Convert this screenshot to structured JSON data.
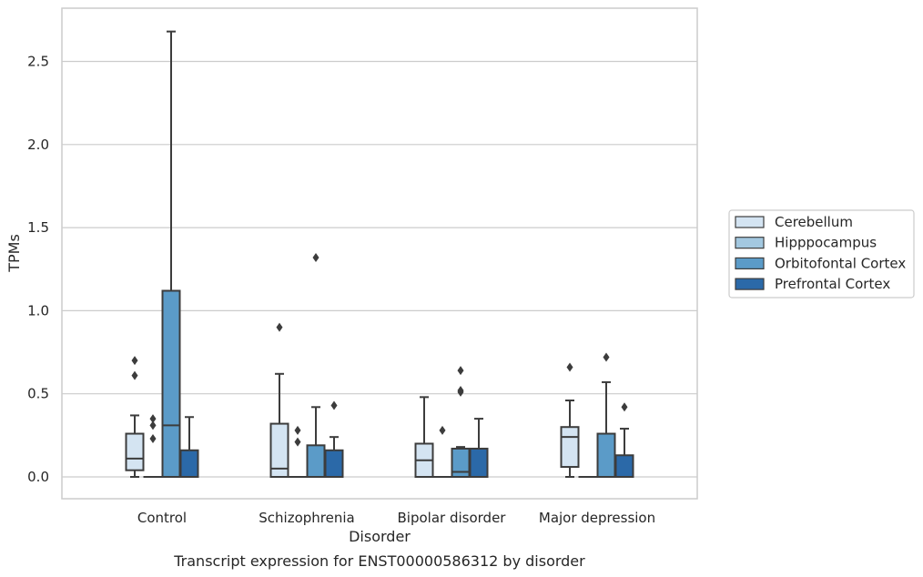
{
  "chart_data": {
    "type": "box",
    "caption": "Transcript expression for ENST00000586312 by disorder",
    "xlabel": "Disorder",
    "ylabel": "TPMs",
    "ylim": [
      -0.13,
      2.83
    ],
    "yticks": [
      "0.0",
      "0.5",
      "1.0",
      "1.5",
      "2.0",
      "2.5"
    ],
    "ytick_values": [
      0.0,
      0.5,
      1.0,
      1.5,
      2.0,
      2.5
    ],
    "grid": true,
    "legend_position": "right",
    "categories": [
      "Control",
      "Schizophrenia",
      "Bipolar disorder",
      "Major depression"
    ],
    "series": [
      {
        "name": "Cerebellum",
        "color": "#d4e4f2",
        "boxes": [
          {
            "whislo": 0.0,
            "q1": 0.04,
            "med": 0.11,
            "q3": 0.26,
            "whishi": 0.37,
            "fliers": [
              0.61,
              0.7
            ]
          },
          {
            "whislo": 0.0,
            "q1": 0.0,
            "med": 0.05,
            "q3": 0.32,
            "whishi": 0.62,
            "fliers": [
              0.9
            ]
          },
          {
            "whislo": 0.0,
            "q1": 0.0,
            "med": 0.1,
            "q3": 0.2,
            "whishi": 0.48,
            "fliers": []
          },
          {
            "whislo": 0.0,
            "q1": 0.06,
            "med": 0.24,
            "q3": 0.3,
            "whishi": 0.46,
            "fliers": [
              0.66
            ]
          }
        ]
      },
      {
        "name": "Hipppocampus",
        "color": "#a3c8e0",
        "boxes": [
          {
            "whislo": 0.0,
            "q1": 0.0,
            "med": 0.0,
            "q3": 0.0,
            "whishi": 0.0,
            "fliers": [
              0.23,
              0.31,
              0.35
            ]
          },
          {
            "whislo": 0.0,
            "q1": 0.0,
            "med": 0.0,
            "q3": 0.0,
            "whishi": 0.0,
            "fliers": [
              0.21,
              0.28
            ]
          },
          {
            "whislo": 0.0,
            "q1": 0.0,
            "med": 0.0,
            "q3": 0.0,
            "whishi": 0.0,
            "fliers": [
              0.28
            ]
          },
          {
            "whislo": 0.0,
            "q1": 0.0,
            "med": 0.0,
            "q3": 0.0,
            "whishi": 0.0,
            "fliers": []
          }
        ]
      },
      {
        "name": "Orbitofontal Cortex",
        "color": "#5b9bc8",
        "boxes": [
          {
            "whislo": 0.0,
            "q1": 0.0,
            "med": 0.31,
            "q3": 1.12,
            "whishi": 2.68,
            "fliers": []
          },
          {
            "whislo": 0.0,
            "q1": 0.0,
            "med": 0.0,
            "q3": 0.19,
            "whishi": 0.42,
            "fliers": [
              1.32
            ]
          },
          {
            "whislo": 0.0,
            "q1": 0.0,
            "med": 0.03,
            "q3": 0.17,
            "whishi": 0.18,
            "fliers": [
              0.51,
              0.52,
              0.64
            ]
          },
          {
            "whislo": 0.0,
            "q1": 0.0,
            "med": 0.0,
            "q3": 0.26,
            "whishi": 0.57,
            "fliers": [
              0.72
            ]
          }
        ]
      },
      {
        "name": "Prefrontal Cortex",
        "color": "#2b69a8",
        "boxes": [
          {
            "whislo": 0.0,
            "q1": 0.0,
            "med": 0.0,
            "q3": 0.16,
            "whishi": 0.36,
            "fliers": []
          },
          {
            "whislo": 0.0,
            "q1": 0.0,
            "med": 0.0,
            "q3": 0.16,
            "whishi": 0.24,
            "fliers": [
              0.43
            ]
          },
          {
            "whislo": 0.0,
            "q1": 0.0,
            "med": 0.0,
            "q3": 0.17,
            "whishi": 0.35,
            "fliers": []
          },
          {
            "whislo": 0.0,
            "q1": 0.0,
            "med": 0.0,
            "q3": 0.13,
            "whishi": 0.29,
            "fliers": [
              0.42
            ]
          }
        ]
      }
    ]
  }
}
